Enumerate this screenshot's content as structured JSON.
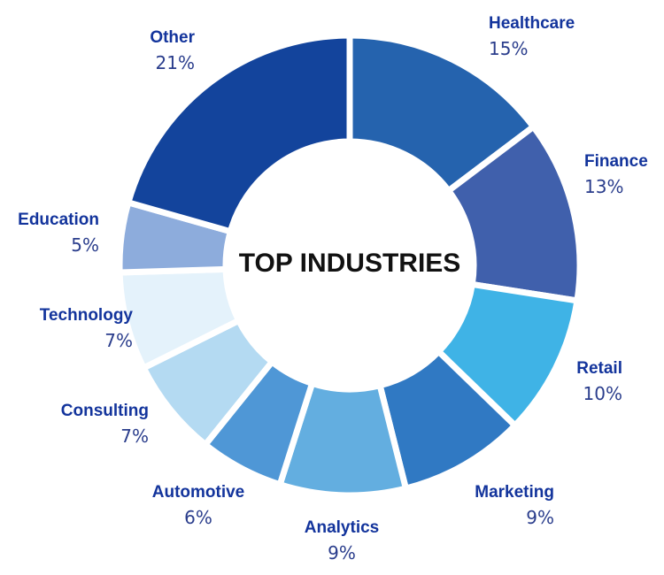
{
  "chart_data": {
    "type": "pie",
    "title": "TOP INDUSTRIES",
    "categories": [
      "Healthcare",
      "Finance",
      "Retail",
      "Marketing",
      "Analytics",
      "Automotive",
      "Consulting",
      "Technology",
      "Education",
      "Other"
    ],
    "values": [
      15,
      13,
      10,
      9,
      9,
      6,
      7,
      7,
      5,
      21
    ],
    "value_labels": [
      "15%",
      "13%",
      "10%",
      "9%",
      "9%",
      "6%",
      "7%",
      "7%",
      "5%",
      "21%"
    ],
    "colors": [
      "#2563ae",
      "#4060ac",
      "#3fb3e6",
      "#3079c3",
      "#63aee0",
      "#4f97d6",
      "#b4daf2",
      "#e4f2fb",
      "#8dacdc",
      "#13449c"
    ],
    "style": "donut"
  }
}
